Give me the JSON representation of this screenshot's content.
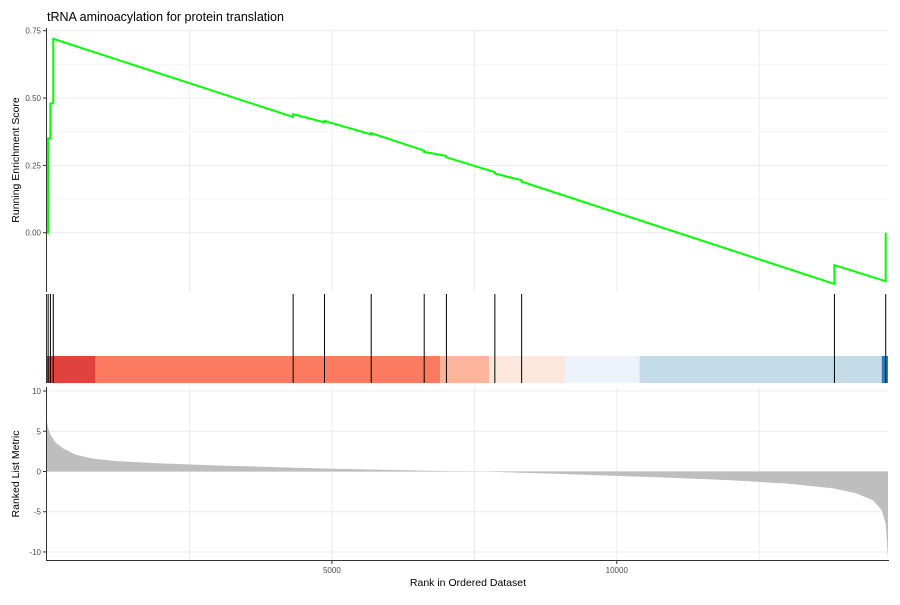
{
  "chart_data": [
    {
      "type": "line",
      "title": "tRNA aminoacylation for protein translation",
      "ylabel": "Running Enrichment Score",
      "xlim": [
        0,
        14760
      ],
      "ylim": [
        -0.22,
        0.76
      ],
      "yticks": [
        0.0,
        0.25,
        0.5,
        0.75
      ],
      "ytick_labels": [
        "0.00",
        "0.25",
        "0.50",
        "0.75"
      ],
      "grid": true,
      "line_color": "#00ff00",
      "series": [
        {
          "x": [
            0,
            20,
            20,
            60,
            60,
            110,
            110,
            4320,
            4320,
            4870,
            4870,
            5690,
            5690,
            6620,
            6620,
            7010,
            7010,
            7860,
            7860,
            8330,
            8330,
            13820,
            13820,
            14720,
            14720
          ],
          "y": [
            0.0,
            0.0,
            0.35,
            0.35,
            0.48,
            0.48,
            0.72,
            0.43,
            0.44,
            0.41,
            0.415,
            0.365,
            0.37,
            0.305,
            0.3,
            0.285,
            0.28,
            0.225,
            0.22,
            0.195,
            0.19,
            -0.19,
            -0.12,
            -0.18,
            0.0
          ]
        }
      ]
    },
    {
      "type": "other",
      "description_of": "gene hit positions",
      "hits": [
        20,
        60,
        110,
        4320,
        4870,
        5690,
        6620,
        7010,
        7860,
        8330,
        13820,
        14720
      ],
      "hit_color": "#000000",
      "color_bands": [
        {
          "start": 0,
          "end": 850,
          "color": "#e0423f"
        },
        {
          "start": 850,
          "end": 6900,
          "color": "#fb7a60"
        },
        {
          "start": 6900,
          "end": 7760,
          "color": "#fcb59c"
        },
        {
          "start": 7760,
          "end": 9090,
          "color": "#fde6dc"
        },
        {
          "start": 9090,
          "end": 10400,
          "color": "#eef3fb"
        },
        {
          "start": 10400,
          "end": 14650,
          "color": "#c4dbe8"
        },
        {
          "start": 14650,
          "end": 14760,
          "color": "#2c7bb6"
        }
      ]
    },
    {
      "type": "area",
      "ylabel": "Ranked List Metric",
      "xlabel": "Rank in Ordered Dataset",
      "xlim": [
        0,
        14760
      ],
      "ylim": [
        -11,
        10.5
      ],
      "xticks": [
        5000,
        10000
      ],
      "xtick_labels": [
        "5000",
        "10000"
      ],
      "yticks": [
        10,
        5,
        0,
        -5,
        -10
      ],
      "ytick_labels": [
        "10",
        "5",
        "0",
        "-5",
        "-10"
      ],
      "grid": true,
      "fill_color": "#bebebe",
      "series": [
        {
          "x": [
            0,
            20,
            60,
            150,
            300,
            500,
            800,
            1200,
            2000,
            3000,
            4000,
            5000,
            6000,
            7000,
            7700,
            8300,
            9000,
            10000,
            11000,
            12000,
            13000,
            13800,
            14200,
            14500,
            14650,
            14720,
            14760
          ],
          "y": [
            6.2,
            5.4,
            4.6,
            3.6,
            2.8,
            2.1,
            1.6,
            1.3,
            1.0,
            0.75,
            0.55,
            0.35,
            0.2,
            0.05,
            0.0,
            -0.15,
            -0.3,
            -0.55,
            -0.8,
            -1.1,
            -1.5,
            -2.1,
            -2.7,
            -3.6,
            -4.8,
            -6.5,
            -10.8
          ]
        }
      ]
    }
  ]
}
